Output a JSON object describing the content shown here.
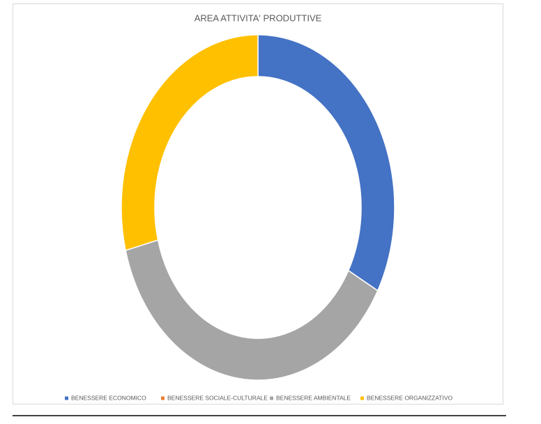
{
  "chart_data": {
    "type": "donut",
    "title": "AREA ATTIVITA' PRODUTTIVE",
    "categories": [
      "BENESSERE ECONOMICO",
      "BENESSERE SOCIALE-CULTURALE",
      "BENESSERE AMBIENTALE",
      "BENESSERE ORGANIZZATIVO"
    ],
    "values": [
      33,
      0,
      38,
      29
    ],
    "colors": [
      "#4472c4",
      "#ed7d31",
      "#a5a5a5",
      "#ffc000"
    ],
    "legend": "bottom"
  }
}
